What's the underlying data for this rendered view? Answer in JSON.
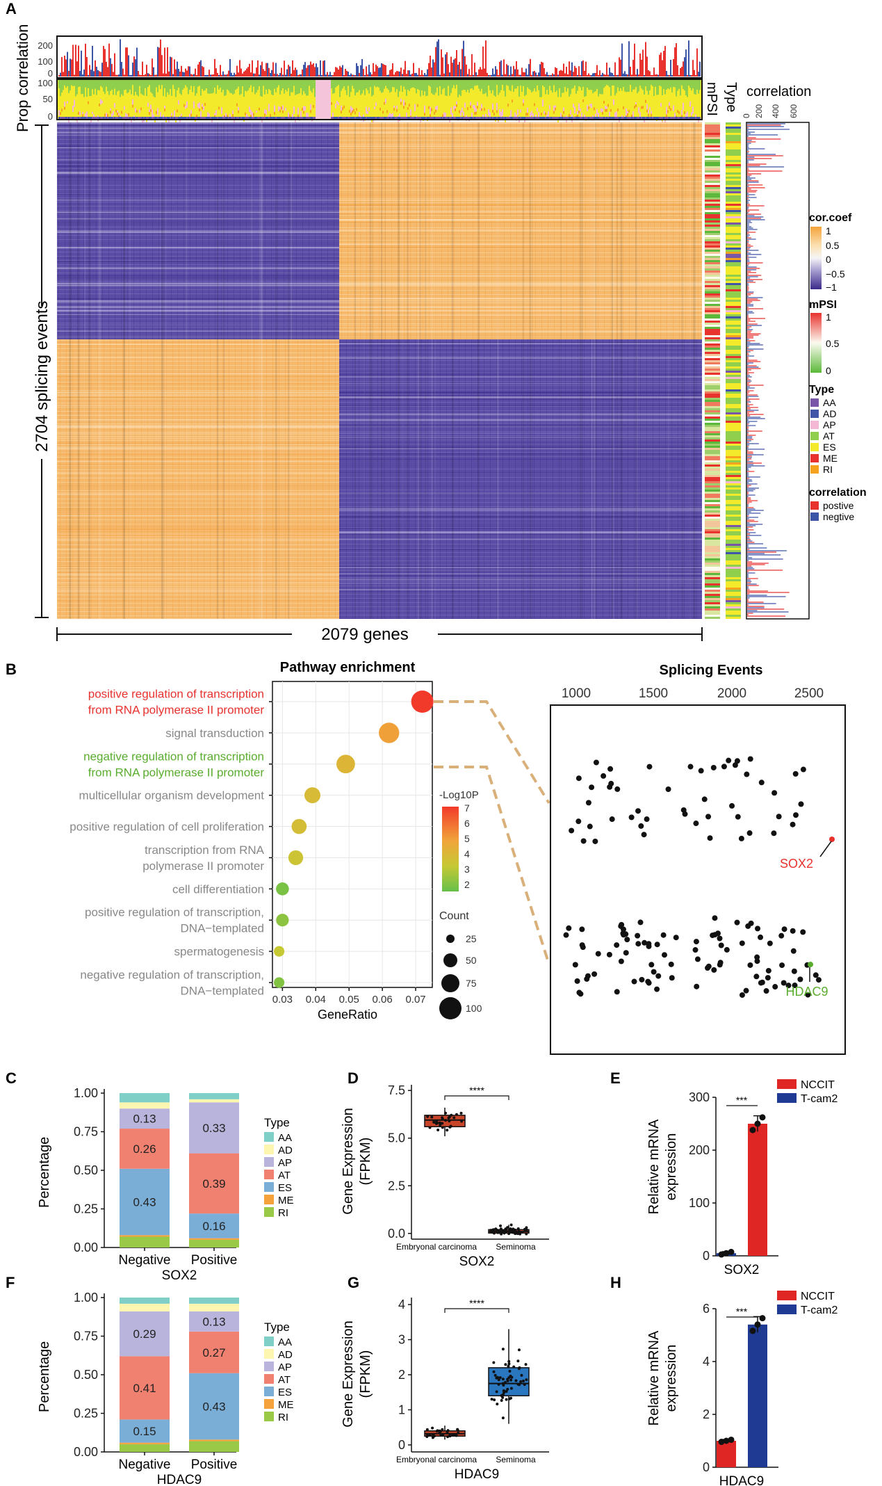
{
  "panel_labels": {
    "a": "A",
    "b": "B",
    "c": "C",
    "d": "D",
    "e": "E",
    "f": "F",
    "g": "G",
    "h": "H"
  },
  "panel_a": {
    "y_title": "Prop correlation",
    "top_ticks": [
      "200",
      "100",
      "0"
    ],
    "mid_ticks": [
      "100",
      "50",
      "0"
    ],
    "rows_label": "2704 splicing events",
    "cols_label": "2079 genes",
    "mpsi_label": "mPSI",
    "type_label": "Type",
    "corr_label": "correlation",
    "corr_ticks": [
      "0",
      "200",
      "400",
      "600"
    ],
    "legend": {
      "cor_title": "cor.coef",
      "cor_ticks": [
        "1",
        "0.5",
        "0",
        "−0.5",
        "−1"
      ],
      "mpsi_title": "mPSI",
      "mpsi_ticks": [
        "1",
        "0.5",
        "0"
      ],
      "type_title": "Type",
      "types": [
        {
          "name": "AA",
          "color": "#7a56a8"
        },
        {
          "name": "AD",
          "color": "#4156a6"
        },
        {
          "name": "AP",
          "color": "#f4b8d4"
        },
        {
          "name": "AT",
          "color": "#8fcf4d"
        },
        {
          "name": "ES",
          "color": "#f2ea2a"
        },
        {
          "name": "ME",
          "color": "#e8322e"
        },
        {
          "name": "RI",
          "color": "#f5a31e"
        }
      ],
      "corr_title": "correlation",
      "corr_items": [
        {
          "name": "postive",
          "color": "#e8322e"
        },
        {
          "name": "negtive",
          "color": "#3d55a6"
        }
      ]
    }
  },
  "panel_b": {
    "dot_title": "Pathway enrichment",
    "splice_title": "Splicing Events",
    "xlabel": "GeneRatio",
    "x_ticks": [
      "0.03",
      "0.04",
      "0.05",
      "0.06",
      "0.07"
    ],
    "splice_ticks": [
      "1000",
      "1500",
      "2000",
      "2500"
    ],
    "legend_title": "-Log10P",
    "legend_ticks": [
      "7",
      "6",
      "5",
      "4",
      "3",
      "2"
    ],
    "count_title": "Count",
    "count_ticks": [
      "25",
      "50",
      "75",
      "100"
    ],
    "sox2_label": "SOX2",
    "hdac9_label": "HDAC9"
  },
  "chart_data": [
    {
      "type": "scatter",
      "title": "Pathway enrichment",
      "xlabel": "GeneRatio",
      "ylabel": "",
      "xlim": [
        0.027,
        0.075
      ],
      "size_legend": "Count",
      "color_legend": "-Log10P",
      "points": [
        {
          "term_lines": [
            "positive regulation of transcription",
            "from RNA polymerase II promoter"
          ],
          "x": 0.072,
          "count": 100,
          "logp": 7.0,
          "label_color": "#e8322e"
        },
        {
          "term_lines": [
            "signal transduction"
          ],
          "x": 0.062,
          "count": 82,
          "logp": 4.6,
          "label_color": "#888888"
        },
        {
          "term_lines": [
            "negative regulation of transcription",
            "from RNA polymerase II promoter"
          ],
          "x": 0.049,
          "count": 66,
          "logp": 3.8,
          "label_color": "#5aad2e"
        },
        {
          "term_lines": [
            "multicellular organism development"
          ],
          "x": 0.039,
          "count": 46,
          "logp": 3.6,
          "label_color": "#888888"
        },
        {
          "term_lines": [
            "positive regulation of cell proliferation"
          ],
          "x": 0.035,
          "count": 40,
          "logp": 3.5,
          "label_color": "#888888"
        },
        {
          "term_lines": [
            "transcription from RNA",
            "polymerase II promoter"
          ],
          "x": 0.034,
          "count": 38,
          "logp": 3.2,
          "label_color": "#888888"
        },
        {
          "term_lines": [
            "cell differentiation"
          ],
          "x": 0.03,
          "count": 27,
          "logp": 2.2,
          "label_color": "#888888"
        },
        {
          "term_lines": [
            "positive regulation of transcription,",
            "DNA−templated"
          ],
          "x": 0.03,
          "count": 26,
          "logp": 2.4,
          "label_color": "#888888"
        },
        {
          "term_lines": [
            "spermatogenesis"
          ],
          "x": 0.029,
          "count": 16,
          "logp": 3.0,
          "label_color": "#888888"
        },
        {
          "term_lines": [
            "negative regulation of transcription,",
            "DNA−templated"
          ],
          "x": 0.029,
          "count": 16,
          "logp": 2.3,
          "label_color": "#888888"
        }
      ]
    },
    {
      "type": "bar",
      "title": "SOX2",
      "xlabel": "SOX2",
      "ylabel": "Percentage",
      "ylim": [
        0,
        1
      ],
      "y_ticks": [
        "0.00",
        "0.25",
        "0.50",
        "0.75",
        "1.00"
      ],
      "categories": [
        "Negative",
        "Positive"
      ],
      "series": [
        {
          "name": "RI",
          "color": "#9ac847",
          "values": [
            0.07,
            0.05
          ]
        },
        {
          "name": "ME",
          "color": "#f5a23c",
          "values": [
            0.01,
            0.01
          ]
        },
        {
          "name": "ES",
          "color": "#7aaed6",
          "values": [
            0.43,
            0.16
          ]
        },
        {
          "name": "AT",
          "color": "#f08070",
          "values": [
            0.26,
            0.39
          ]
        },
        {
          "name": "AP",
          "color": "#b8b4dc",
          "values": [
            0.13,
            0.33
          ]
        },
        {
          "name": "AD",
          "color": "#fdf6b0",
          "values": [
            0.04,
            0.02
          ]
        },
        {
          "name": "AA",
          "color": "#80cfc6",
          "values": [
            0.06,
            0.04
          ]
        }
      ],
      "data_labels": [
        [
          "",
          "",
          "0.43",
          "0.26",
          "0.13",
          "",
          ""
        ],
        [
          "",
          "",
          "0.16",
          "0.39",
          "0.33",
          "",
          ""
        ]
      ]
    },
    {
      "type": "bar",
      "title": "HDAC9",
      "xlabel": "HDAC9",
      "ylabel": "Percentage",
      "ylim": [
        0,
        1
      ],
      "y_ticks": [
        "0.00",
        "0.25",
        "0.50",
        "0.75",
        "1.00"
      ],
      "categories": [
        "Negative",
        "Positive"
      ],
      "series": [
        {
          "name": "RI",
          "color": "#9ac847",
          "values": [
            0.05,
            0.07
          ]
        },
        {
          "name": "ME",
          "color": "#f5a23c",
          "values": [
            0.01,
            0.01
          ]
        },
        {
          "name": "ES",
          "color": "#7aaed6",
          "values": [
            0.15,
            0.43
          ]
        },
        {
          "name": "AT",
          "color": "#f08070",
          "values": [
            0.41,
            0.27
          ]
        },
        {
          "name": "AP",
          "color": "#b8b4dc",
          "values": [
            0.29,
            0.13
          ]
        },
        {
          "name": "AD",
          "color": "#fdf6b0",
          "values": [
            0.05,
            0.05
          ]
        },
        {
          "name": "AA",
          "color": "#80cfc6",
          "values": [
            0.04,
            0.04
          ]
        }
      ],
      "data_labels": [
        [
          "",
          "",
          "0.15",
          "0.41",
          "0.29",
          "",
          ""
        ],
        [
          "",
          "",
          "0.43",
          "0.27",
          "0.13",
          "",
          ""
        ]
      ]
    },
    {
      "type": "box",
      "title": "SOX2",
      "xlabel": "SOX2",
      "ylabel": "Gene Expression (FPKM)",
      "ylim": [
        -0.3,
        7.8
      ],
      "y_ticks": [
        0,
        2.5,
        5.0,
        7.5
      ],
      "y_tick_labels": [
        "0.0",
        "2.5",
        "5.0",
        "7.5"
      ],
      "categories": [
        "Embryonal carcinoma",
        "Seminoma"
      ],
      "box_colors": [
        "#c8452a",
        "#c8452a"
      ],
      "boxes": [
        {
          "q1": 5.6,
          "median": 5.95,
          "q3": 6.2,
          "whisker_low": 5.1,
          "whisker_high": 6.6
        },
        {
          "q1": 0.02,
          "median": 0.1,
          "q3": 0.2,
          "whisker_low": 0.0,
          "whisker_high": 0.45
        }
      ],
      "significance": "****"
    },
    {
      "type": "box",
      "title": "HDAC9",
      "xlabel": "HDAC9",
      "ylabel": "Gene Expression (FPKM)",
      "ylim": [
        -0.2,
        4.2
      ],
      "y_ticks": [
        0,
        1,
        2,
        3,
        4
      ],
      "y_tick_labels": [
        "0",
        "1",
        "2",
        "3",
        "4"
      ],
      "categories": [
        "Embryonal carcinoma",
        "Seminoma"
      ],
      "box_colors": [
        "#c8452a",
        "#2a77c0"
      ],
      "boxes": [
        {
          "q1": 0.25,
          "median": 0.32,
          "q3": 0.4,
          "whisker_low": 0.15,
          "whisker_high": 0.55
        },
        {
          "q1": 1.4,
          "median": 1.75,
          "q3": 2.2,
          "whisker_low": 0.6,
          "whisker_high": 3.3
        }
      ],
      "significance": "****"
    },
    {
      "type": "bar",
      "title": "SOX2",
      "xlabel": "SOX2",
      "ylabel": "Relative mRNA expression",
      "ylim": [
        0,
        300
      ],
      "y_ticks": [
        0,
        100,
        200,
        300
      ],
      "categories": [
        "NCCIT",
        "T-cam2"
      ],
      "values": [
        5,
        250
      ],
      "errors": [
        3,
        15
      ],
      "colors": [
        "#1f3a93",
        "#e02525"
      ],
      "legend": [
        {
          "name": "NCCIT",
          "color": "#e02525"
        },
        {
          "name": "T-cam2",
          "color": "#1f3a93"
        }
      ],
      "significance": "***"
    },
    {
      "type": "bar",
      "title": "HDAC9",
      "xlabel": "HDAC9",
      "ylabel": "Relative mRNA expression",
      "ylim": [
        0,
        6
      ],
      "y_ticks": [
        0,
        2,
        4,
        6
      ],
      "categories": [
        "NCCIT",
        "T-cam2"
      ],
      "values": [
        1.0,
        5.4
      ],
      "errors": [
        0.05,
        0.3
      ],
      "colors": [
        "#e02525",
        "#1f3a93"
      ],
      "legend": [
        {
          "name": "NCCIT",
          "color": "#e02525"
        },
        {
          "name": "T-cam2",
          "color": "#1f3a93"
        }
      ],
      "significance": "***"
    }
  ]
}
